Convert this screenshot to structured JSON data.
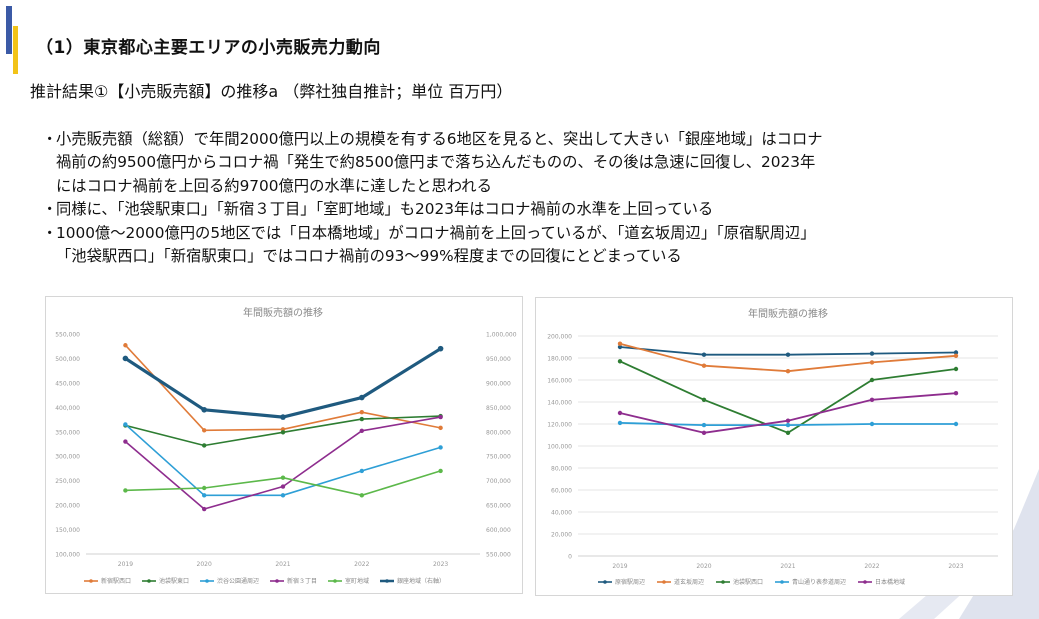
{
  "header": {
    "section_title": "（1）東京都心主要エリアの小売販売力動向",
    "subtitle": "推計結果①【小売販売額】の推移a （弊社独自推計；単位 百万円）"
  },
  "bullets": [
    {
      "mark": "・",
      "lines": [
        "小売販売額（総額）で年間2000億円以上の規模を有する6地区を見ると、突出して大きい「銀座地域」はコロナ",
        "禍前の約9500億円からコロナ禍「発生で約8500億円まで落ち込んだものの、その後は急速に回復し、2023年",
        "にはコロナ禍前を上回る約9700億円の水準に達したと思われる"
      ]
    },
    {
      "mark": "・",
      "lines": [
        "同様に、「池袋駅東口」「新宿３丁目」「室町地域」も2023年はコロナ禍前の水準を上回っている"
      ]
    },
    {
      "mark": "・",
      "lines": [
        "1000億～2000億円の5地区では「日本橋地域」がコロナ禍前を上回っているが、「道玄坂周辺」「原宿駅周辺」",
        "「池袋駅西口」「新宿駅東口」ではコロナ禍前の93～99%程度までの回復にとどまっている"
      ]
    }
  ],
  "colors": {
    "accent_blue": "#3b5aa6",
    "accent_yellow": "#f2c318",
    "orange": "#e07b39",
    "dark_green": "#2e7d32",
    "light_blue": "#2e9fd6",
    "purple": "#8e2d8e",
    "light_green": "#5cb84a",
    "navy": "#1f5a7f"
  },
  "chart_data": [
    {
      "type": "line",
      "title": "年間販売額の推移",
      "categories": [
        "2019",
        "2020",
        "2021",
        "2022",
        "2023"
      ],
      "y_left": {
        "min": 100000,
        "max": 550000,
        "step": 50000,
        "ticks": [
          "100,000",
          "150,000",
          "200,000",
          "250,000",
          "300,000",
          "350,000",
          "400,000",
          "450,000",
          "500,000",
          "550,000"
        ]
      },
      "y_right": {
        "min": 550000,
        "max": 1000000,
        "step": 50000,
        "ticks": [
          "550,000",
          "600,000",
          "650,000",
          "700,000",
          "750,000",
          "800,000",
          "850,000",
          "900,000",
          "950,000",
          "1,000,000"
        ]
      },
      "series": [
        {
          "name": "新宿駅西口",
          "axis": "left",
          "color": "#e07b39",
          "width": 1.6,
          "values": [
            527000,
            353000,
            355000,
            390000,
            358000
          ]
        },
        {
          "name": "池袋駅東口",
          "axis": "left",
          "color": "#2e7d32",
          "width": 1.6,
          "values": [
            363000,
            322000,
            349000,
            376000,
            382000
          ]
        },
        {
          "name": "渋谷公園通周辺",
          "axis": "left",
          "color": "#2e9fd6",
          "width": 1.6,
          "values": [
            365000,
            220000,
            220000,
            270000,
            318000
          ]
        },
        {
          "name": "新宿３丁目",
          "axis": "left",
          "color": "#8e2d8e",
          "width": 1.6,
          "values": [
            330000,
            192000,
            238000,
            352000,
            380000
          ]
        },
        {
          "name": "室町地域",
          "axis": "left",
          "color": "#5cb84a",
          "width": 1.6,
          "values": [
            230000,
            235000,
            256000,
            220000,
            270000
          ]
        },
        {
          "name": "銀座地域（右軸）",
          "axis": "right",
          "color": "#1f5a7f",
          "width": 3.2,
          "values": [
            950000,
            845000,
            830000,
            870000,
            970000
          ]
        }
      ]
    },
    {
      "type": "line",
      "title": "年間販売額の推移",
      "categories": [
        "2019",
        "2020",
        "2021",
        "2022",
        "2023"
      ],
      "y_left": {
        "min": 0,
        "max": 200000,
        "step": 20000,
        "ticks": [
          "0",
          "20,000",
          "40,000",
          "60,000",
          "80,000",
          "100,000",
          "120,000",
          "140,000",
          "160,000",
          "180,000",
          "200,000"
        ]
      },
      "series": [
        {
          "name": "原宿駅周辺",
          "axis": "left",
          "color": "#1f5a7f",
          "width": 1.8,
          "values": [
            190000,
            183000,
            183000,
            184000,
            185000
          ]
        },
        {
          "name": "道玄坂周辺",
          "axis": "left",
          "color": "#e07b39",
          "width": 1.8,
          "values": [
            193000,
            173000,
            168000,
            176000,
            182000
          ]
        },
        {
          "name": "池袋駅西口",
          "axis": "left",
          "color": "#2e7d32",
          "width": 1.8,
          "values": [
            177000,
            142000,
            112000,
            160000,
            170000
          ]
        },
        {
          "name": "青山通り表参道周辺",
          "axis": "left",
          "color": "#2e9fd6",
          "width": 1.8,
          "values": [
            121000,
            119000,
            119000,
            120000,
            120000
          ]
        },
        {
          "name": "日本橋地域",
          "axis": "left",
          "color": "#8e2d8e",
          "width": 1.8,
          "values": [
            130000,
            112000,
            123000,
            142000,
            148000
          ]
        }
      ]
    }
  ]
}
